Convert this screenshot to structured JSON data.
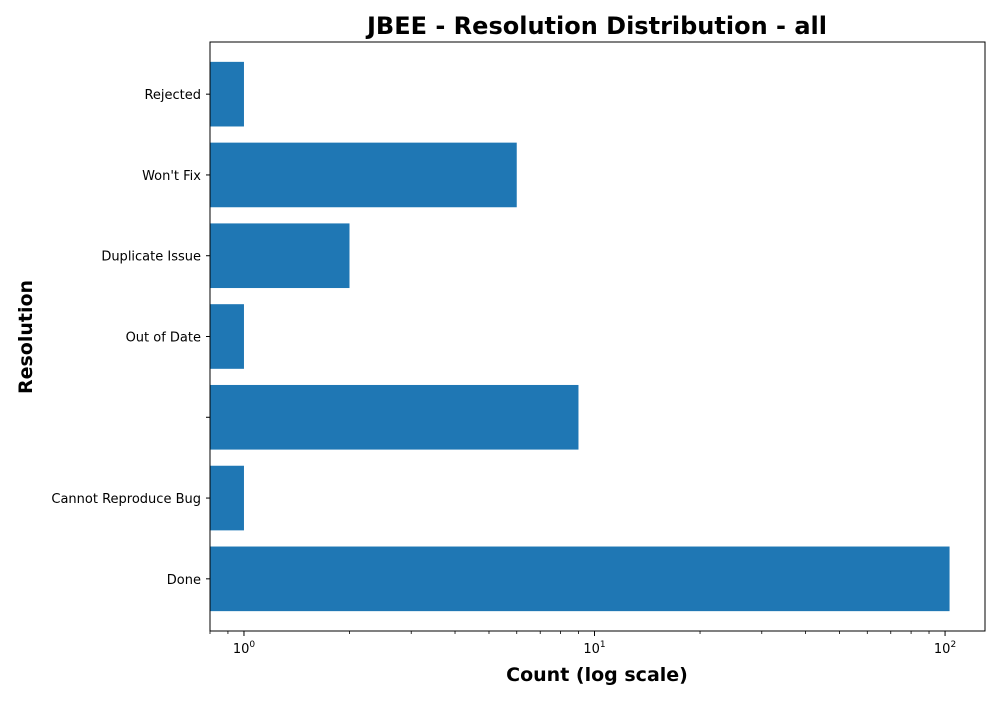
{
  "chart_data": {
    "type": "bar",
    "orientation": "horizontal",
    "title": "JBEE - Resolution Distribution - all",
    "xlabel": "Count (log scale)",
    "ylabel": "Resolution",
    "x_scale": "log",
    "xlim": [
      0.8,
      130
    ],
    "x_ticks": [
      1,
      10,
      100
    ],
    "x_tick_labels": [
      {
        "base": "10",
        "exp": "0"
      },
      {
        "base": "10",
        "exp": "1"
      },
      {
        "base": "10",
        "exp": "2"
      }
    ],
    "categories": [
      "Done",
      "Cannot Reproduce Bug",
      "",
      "Out of Date",
      "Duplicate Issue",
      "Won't Fix",
      "Rejected"
    ],
    "values": [
      103,
      1,
      9,
      1,
      2,
      6,
      1
    ],
    "bar_color": "#1f77b4",
    "grid": false,
    "legend": "none"
  }
}
